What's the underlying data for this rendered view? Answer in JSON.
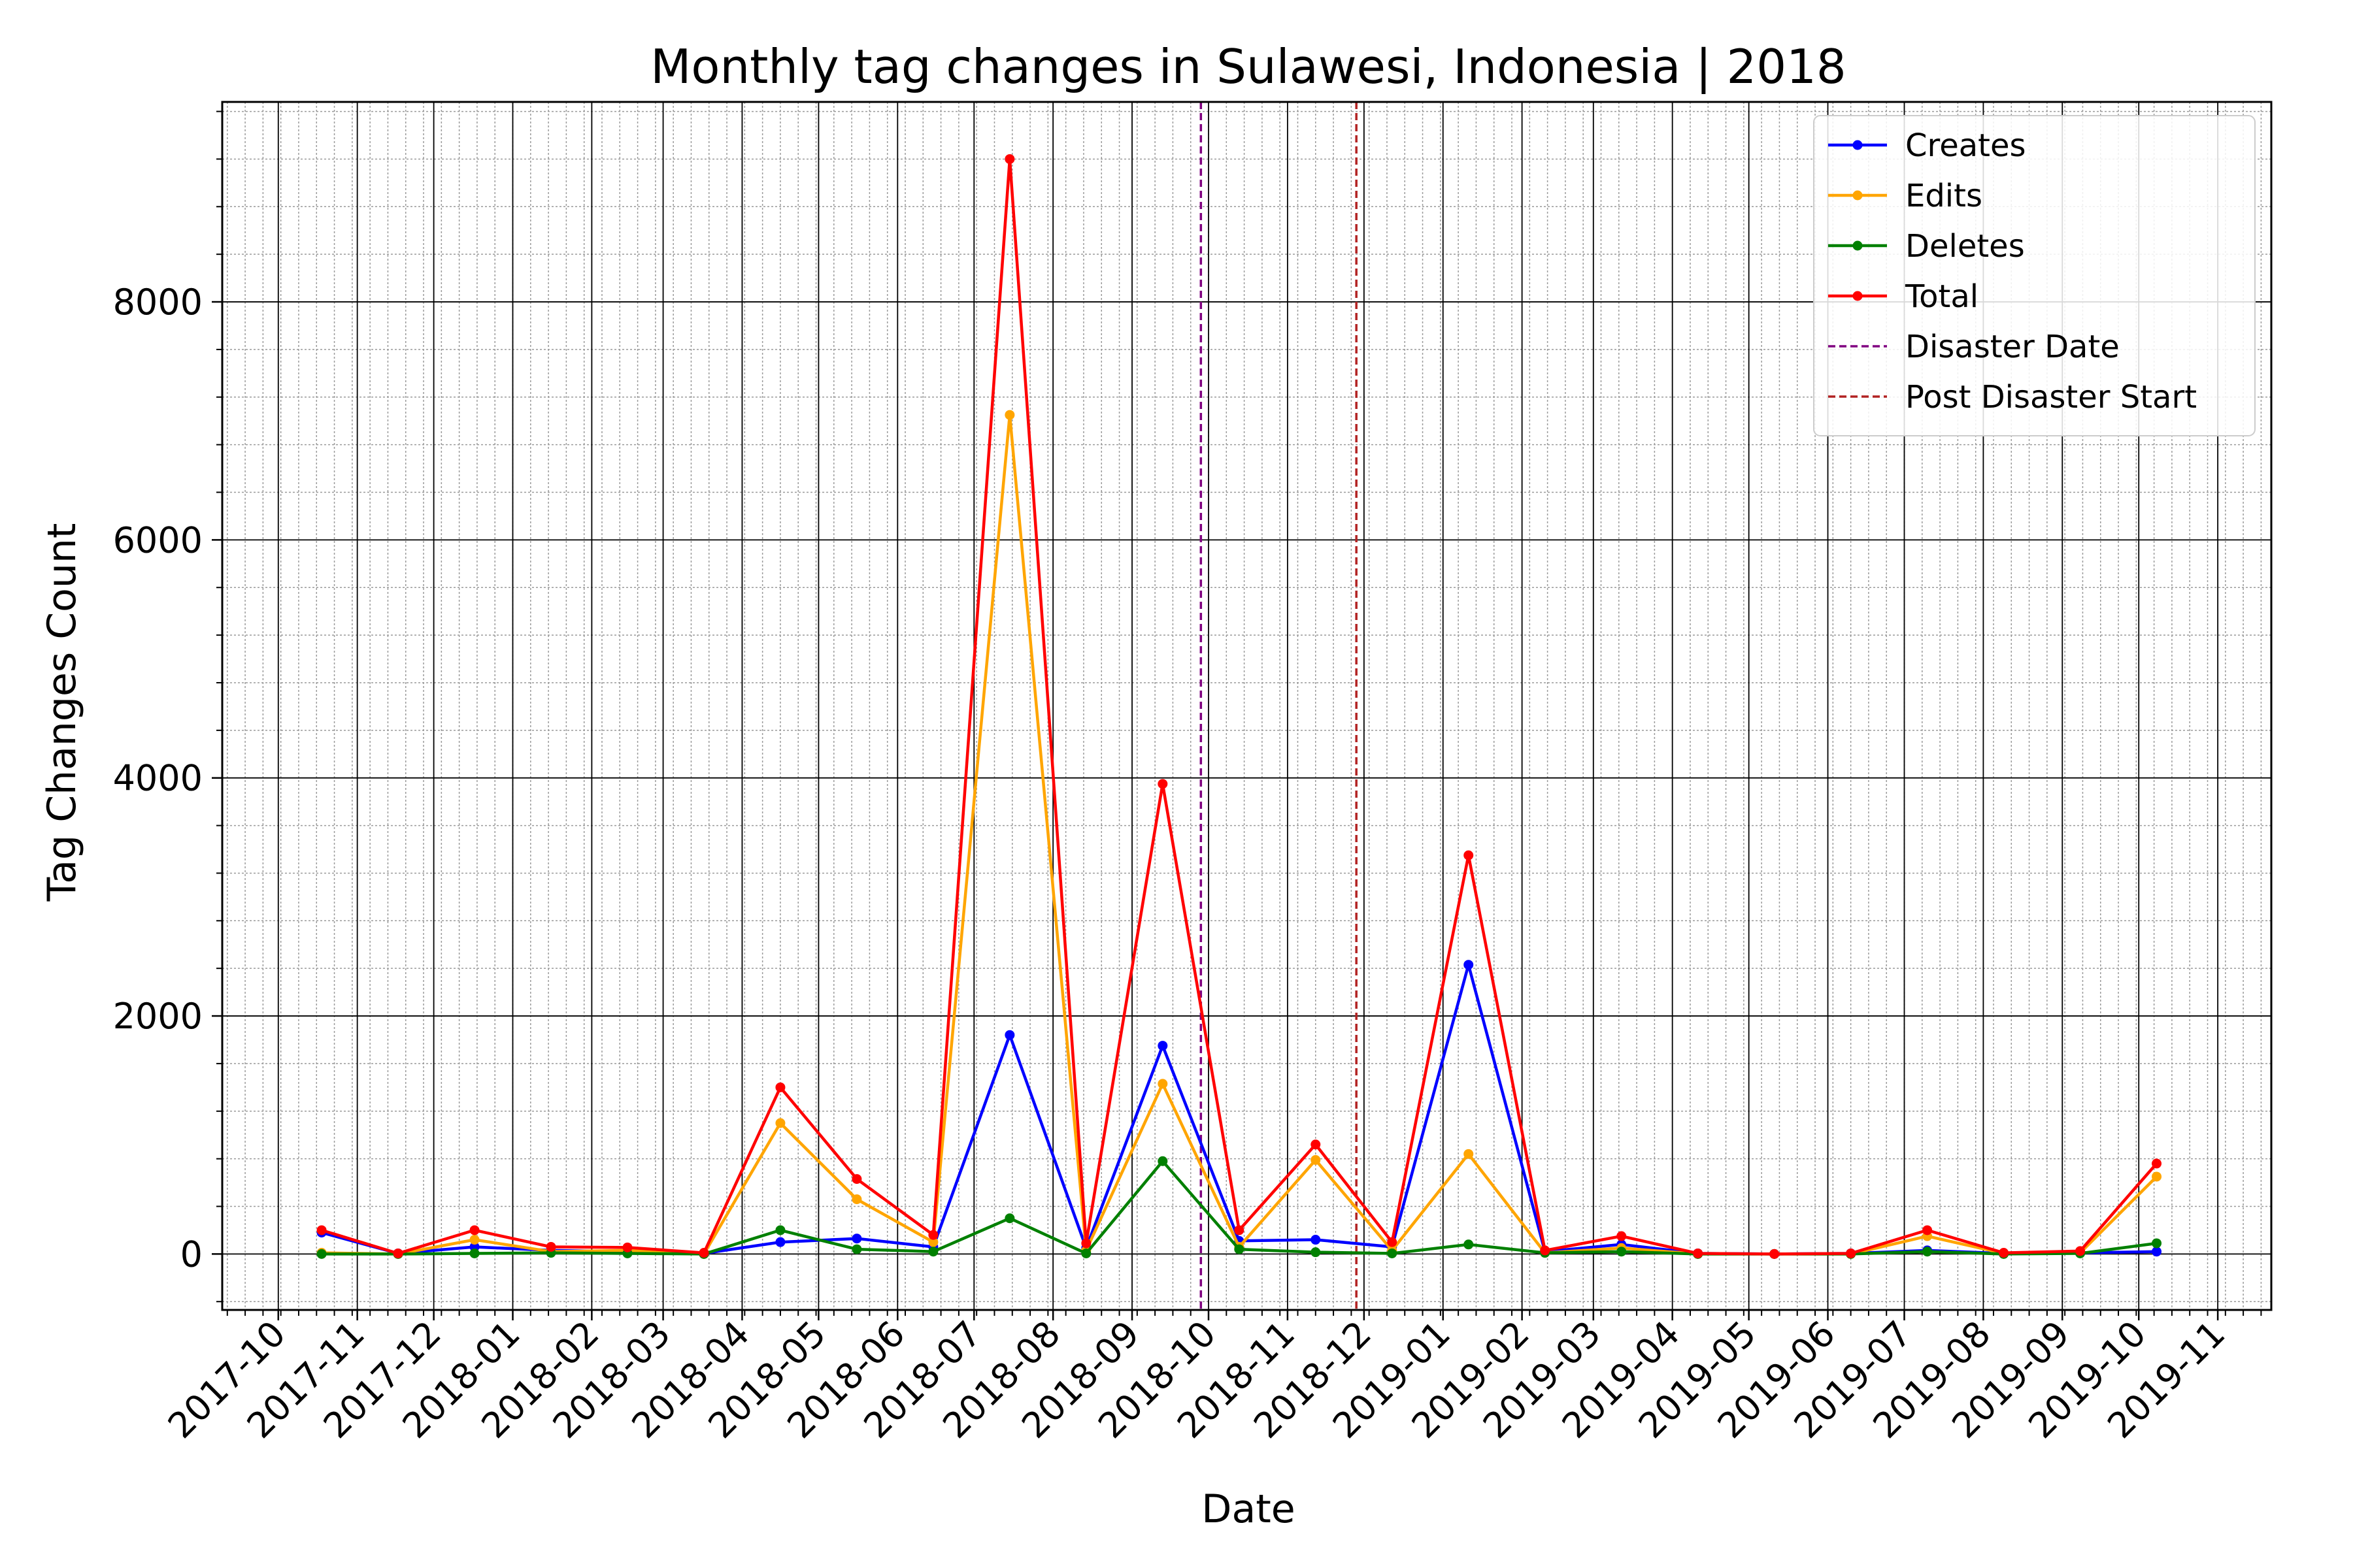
{
  "chart_data": {
    "type": "line",
    "title": "Monthly tag changes in Sulawesi, Indonesia | 2018",
    "xlabel": "Date",
    "ylabel": "Tag Changes Count",
    "ylim": [
      -470,
      9680
    ],
    "xlim": [
      "2017-09-09",
      "2019-11-22"
    ],
    "yticks": [
      0,
      2000,
      4000,
      6000,
      8000
    ],
    "xticks": [
      "2017-10",
      "2017-11",
      "2017-12",
      "2018-01",
      "2018-02",
      "2018-03",
      "2018-04",
      "2018-05",
      "2018-06",
      "2018-07",
      "2018-08",
      "2018-09",
      "2018-10",
      "2018-11",
      "2018-12",
      "2019-01",
      "2019-02",
      "2019-03",
      "2019-04",
      "2019-05",
      "2019-06",
      "2019-07",
      "2019-08",
      "2019-09",
      "2019-10",
      "2019-11"
    ],
    "grid": true,
    "legend_position": "top-right",
    "x": [
      "2017-10-18",
      "2017-11-17",
      "2017-12-17",
      "2018-01-16",
      "2018-02-15",
      "2018-03-17",
      "2018-04-16",
      "2018-05-16",
      "2018-06-15",
      "2018-07-15",
      "2018-08-14",
      "2018-09-13",
      "2018-10-13",
      "2018-11-12",
      "2018-12-12",
      "2019-01-11",
      "2019-02-10",
      "2019-03-12",
      "2019-04-11",
      "2019-05-11",
      "2019-06-10",
      "2019-07-10",
      "2019-08-09",
      "2019-09-08",
      "2019-10-08"
    ],
    "series": [
      {
        "name": "Creates",
        "color": "#0000ff",
        "values": [
          180,
          5,
          60,
          30,
          20,
          5,
          100,
          130,
          60,
          1840,
          50,
          1750,
          110,
          120,
          60,
          2430,
          20,
          80,
          5,
          0,
          5,
          30,
          5,
          10,
          20
        ]
      },
      {
        "name": "Edits",
        "color": "#ffa500",
        "values": [
          10,
          0,
          120,
          20,
          30,
          0,
          1100,
          460,
          100,
          7050,
          30,
          1430,
          60,
          790,
          30,
          840,
          10,
          50,
          0,
          0,
          0,
          150,
          5,
          10,
          650
        ]
      },
      {
        "name": "Deletes",
        "color": "#008000",
        "values": [
          0,
          0,
          5,
          10,
          5,
          0,
          200,
          40,
          20,
          300,
          5,
          780,
          40,
          15,
          5,
          80,
          10,
          20,
          0,
          0,
          0,
          20,
          0,
          5,
          90
        ]
      },
      {
        "name": "Total",
        "color": "#ff0000",
        "values": [
          200,
          5,
          200,
          60,
          55,
          10,
          1400,
          630,
          160,
          9200,
          90,
          3950,
          200,
          920,
          100,
          3350,
          30,
          150,
          5,
          0,
          5,
          200,
          10,
          25,
          760
        ]
      }
    ],
    "vlines": [
      {
        "name": "Disaster Date",
        "date": "2018-09-28",
        "color": "#800080"
      },
      {
        "name": "Post Disaster Start",
        "date": "2018-11-28",
        "color": "#b22222"
      }
    ]
  }
}
